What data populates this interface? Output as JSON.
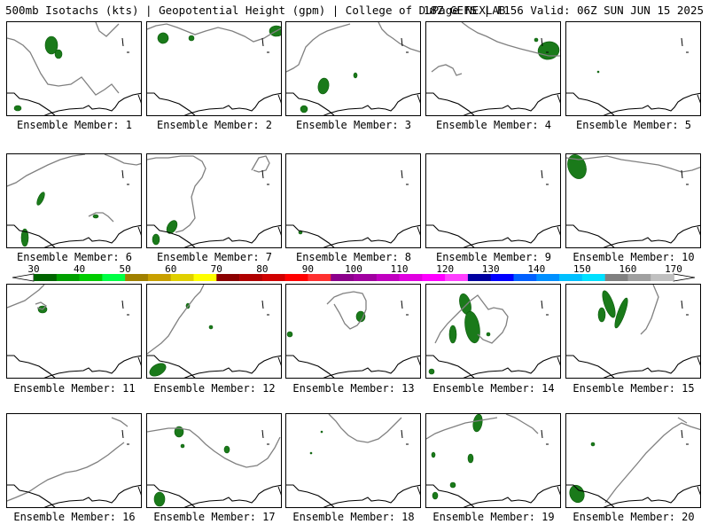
{
  "header": {
    "left": "500mb Isotachs (kts) | Geopotential Height (gpm) | College of DuPage NEXLAB",
    "right": "18Z GEFS | F156 Valid: 06Z SUN JUN 15 2025"
  },
  "members": [
    {
      "label": "Ensemble Member: 1"
    },
    {
      "label": "Ensemble Member: 2"
    },
    {
      "label": "Ensemble Member: 3"
    },
    {
      "label": "Ensemble Member: 4"
    },
    {
      "label": "Ensemble Member: 5"
    },
    {
      "label": "Ensemble Member: 6"
    },
    {
      "label": "Ensemble Member: 7"
    },
    {
      "label": "Ensemble Member: 8"
    },
    {
      "label": "Ensemble Member: 9"
    },
    {
      "label": "Ensemble Member: 10"
    },
    {
      "label": "Ensemble Member: 11"
    },
    {
      "label": "Ensemble Member: 12"
    },
    {
      "label": "Ensemble Member: 13"
    },
    {
      "label": "Ensemble Member: 14"
    },
    {
      "label": "Ensemble Member: 15"
    },
    {
      "label": "Ensemble Member: 16"
    },
    {
      "label": "Ensemble Member: 17"
    },
    {
      "label": "Ensemble Member: 18"
    },
    {
      "label": "Ensemble Member: 19"
    },
    {
      "label": "Ensemble Member: 20"
    }
  ],
  "colorbar": {
    "tick_labels": [
      "30",
      "40",
      "50",
      "60",
      "70",
      "80",
      "90",
      "100",
      "110",
      "120",
      "130",
      "140",
      "150",
      "160",
      "170"
    ],
    "colors": [
      "#006400",
      "#00a000",
      "#00cc00",
      "#00ff44",
      "#a08000",
      "#c8a000",
      "#e0d000",
      "#ffff00",
      "#8b0000",
      "#b00000",
      "#d00000",
      "#ff0000",
      "#ff3030",
      "#8b008b",
      "#a000a0",
      "#c000c0",
      "#e000e0",
      "#ff00ff",
      "#ff40ff",
      "#0000a0",
      "#0000ff",
      "#0060ff",
      "#0090ff",
      "#00c0ff",
      "#00e0ff",
      "#808080",
      "#a0a0a0",
      "#c0c0c0"
    ],
    "units": "kts"
  }
}
